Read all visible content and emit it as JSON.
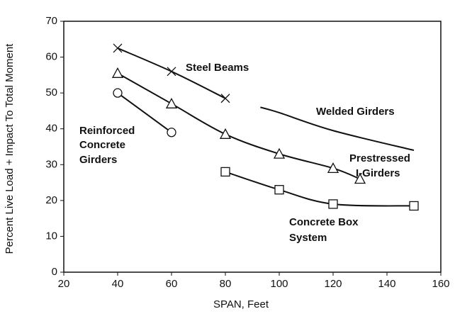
{
  "chart_data": {
    "type": "line",
    "xlabel": "SPAN, Feet",
    "ylabel": "Percent Live Load + Impact To Total Moment",
    "xlim": [
      20,
      160
    ],
    "xticks": [
      20,
      40,
      60,
      80,
      100,
      120,
      140,
      160
    ],
    "ylim": [
      0,
      70
    ],
    "yticks": [
      0,
      10,
      20,
      30,
      40,
      50,
      60,
      70
    ],
    "series": [
      {
        "label": [
          "Steel Beams"
        ],
        "marker": "x",
        "color": "#111",
        "x": [
          40,
          60,
          80
        ],
        "values": [
          62.5,
          56,
          48.5
        ]
      },
      {
        "label": [
          "Welded Girders"
        ],
        "marker": "none",
        "color": "#111",
        "x": [
          93,
          100,
          120,
          150
        ],
        "values": [
          46,
          44.5,
          39.5,
          34
        ]
      },
      {
        "label": [
          "Reinforced",
          "Concrete",
          "Girders"
        ],
        "marker": "circle",
        "color": "#111",
        "x": [
          40,
          60
        ],
        "values": [
          50,
          39
        ]
      },
      {
        "label": [
          "Prestressed",
          "I-Girders"
        ],
        "marker": "triangle",
        "color": "#111",
        "x": [
          40,
          60,
          80,
          100,
          120,
          130
        ],
        "values": [
          55.5,
          47,
          38.5,
          33,
          29,
          26
        ]
      },
      {
        "label": [
          "Concrete Box",
          "System"
        ],
        "marker": "square",
        "color": "#111",
        "x": [
          80,
          100,
          120,
          150
        ],
        "values": [
          28,
          23,
          19,
          18.5
        ]
      }
    ]
  }
}
